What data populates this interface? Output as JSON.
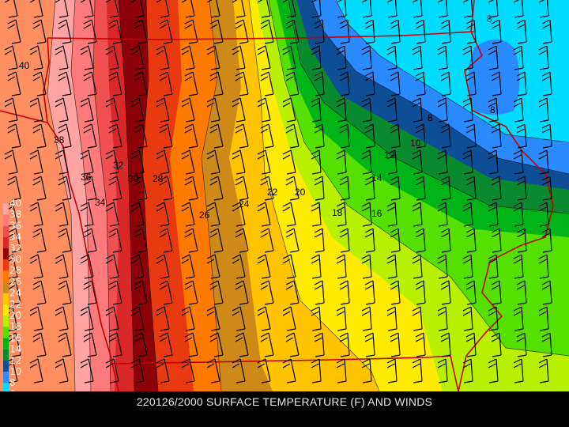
{
  "caption": "220126/2000 SURFACE TEMPERATURE (F) AND WINDS",
  "legend": {
    "labels": [
      "40",
      "38",
      "36",
      "34",
      "32",
      "30",
      "28",
      "26",
      "24",
      "22",
      "20",
      "18",
      "16",
      "14",
      "12",
      "10",
      "8",
      "6"
    ],
    "colors": [
      "#ff8f60",
      "#ffa3a3",
      "#ff7a7a",
      "#f05050",
      "#d82828",
      "#8c0008",
      "#e83a10",
      "#ff7a00",
      "#cd8a18",
      "#ffc300",
      "#ffeb00",
      "#b8f000",
      "#56e000",
      "#00b418",
      "#0a8a2e",
      "#0e4e94",
      "#2a8aff",
      "#00dcff"
    ],
    "bottom_color": "#8b5fd8"
  },
  "contours": {
    "labels": [
      "40",
      "38",
      "36",
      "34",
      "32",
      "30",
      "28",
      "26",
      "24",
      "22",
      "20",
      "18",
      "16",
      "14",
      "12",
      "10",
      "8",
      "8",
      "8"
    ]
  }
}
